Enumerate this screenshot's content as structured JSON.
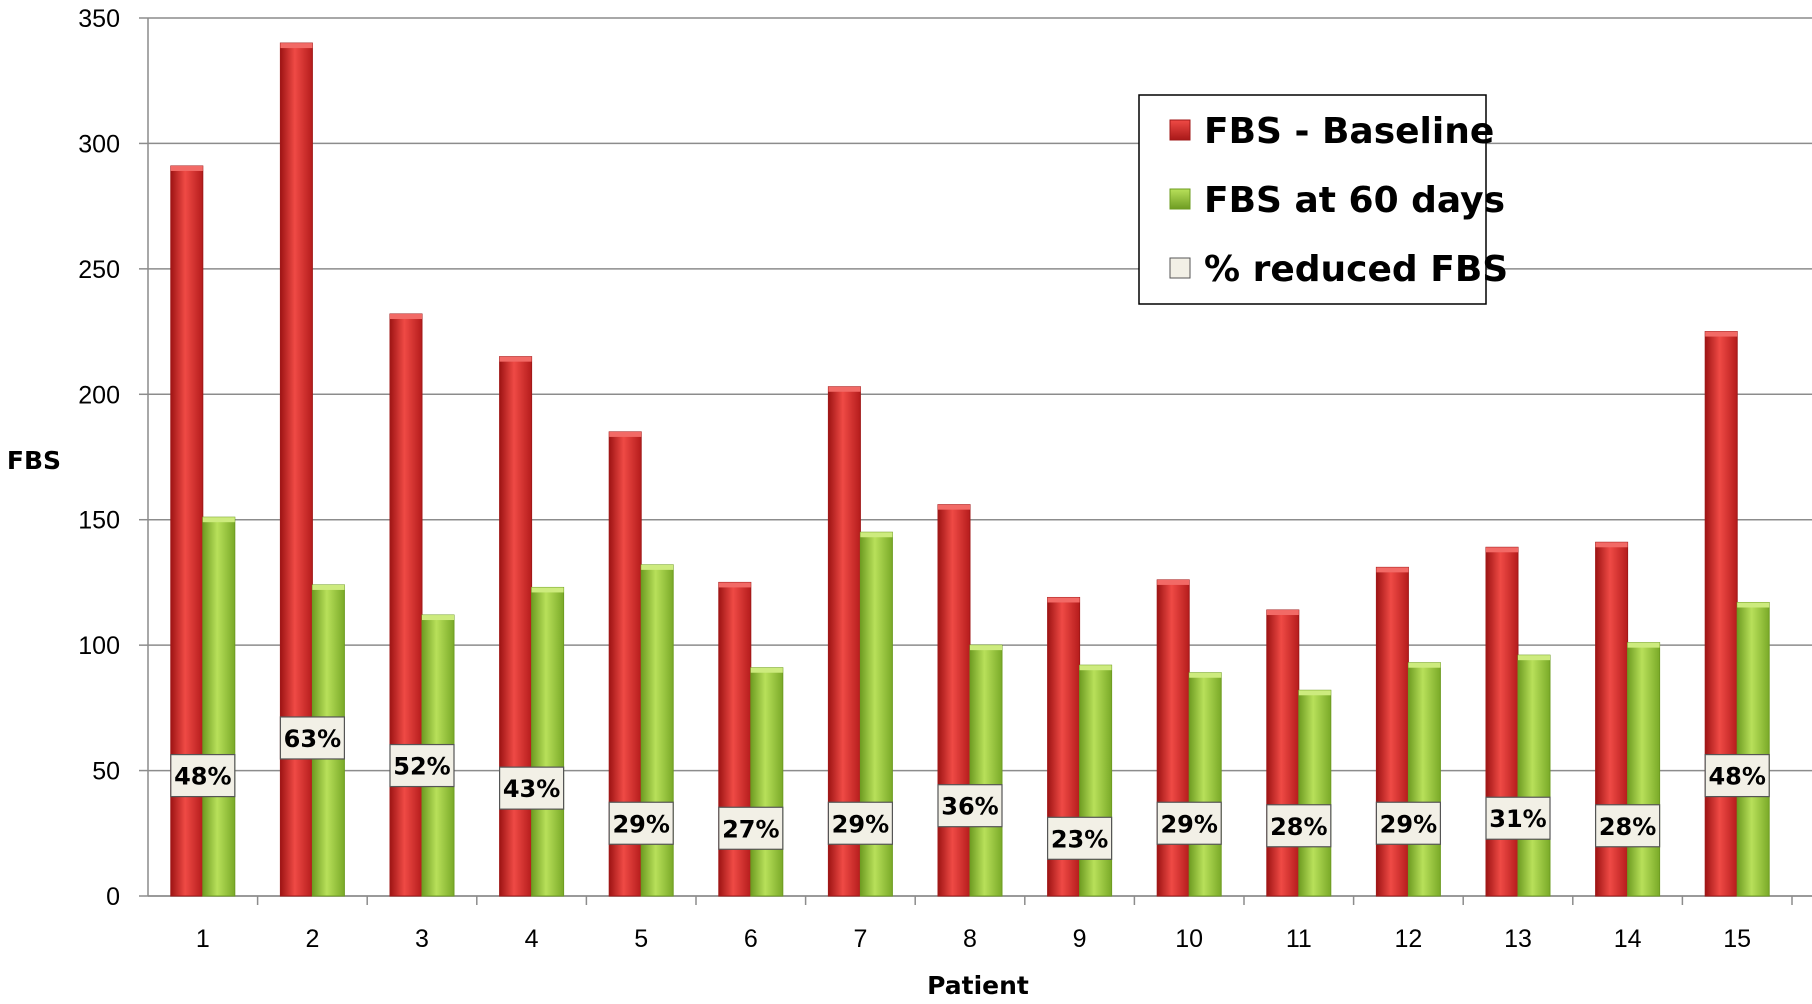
{
  "chart_data": {
    "type": "bar",
    "xlabel": "Patient",
    "ylabel": "FBS",
    "ylim": [
      0,
      350
    ],
    "yticks": [
      0,
      50,
      100,
      150,
      200,
      250,
      300,
      350
    ],
    "grid": "horizontal",
    "legend_position": "top-right",
    "categories": [
      "1",
      "2",
      "3",
      "4",
      "5",
      "6",
      "7",
      "8",
      "9",
      "10",
      "11",
      "12",
      "13",
      "14",
      "15"
    ],
    "series": [
      {
        "name": "FBS - Baseline",
        "color": "#d42a2a",
        "values": [
          291,
          340,
          232,
          215,
          185,
          125,
          203,
          156,
          119,
          126,
          114,
          131,
          139,
          141,
          225
        ]
      },
      {
        "name": "FBS at 60 days",
        "color": "#8fc23a",
        "values": [
          151,
          124,
          112,
          123,
          132,
          91,
          145,
          100,
          92,
          89,
          82,
          93,
          96,
          101,
          117
        ]
      },
      {
        "name": "% reduced FBS",
        "color": "#f2f0e6",
        "values": [
          48,
          63,
          52,
          43,
          29,
          27,
          29,
          36,
          23,
          29,
          28,
          29,
          31,
          28,
          48
        ]
      }
    ],
    "data_labels": [
      "48%",
      "63%",
      "52%",
      "43%",
      "29%",
      "27%",
      "29%",
      "36%",
      "23%",
      "29%",
      "28%",
      "29%",
      "31%",
      "28%",
      "48%"
    ]
  }
}
